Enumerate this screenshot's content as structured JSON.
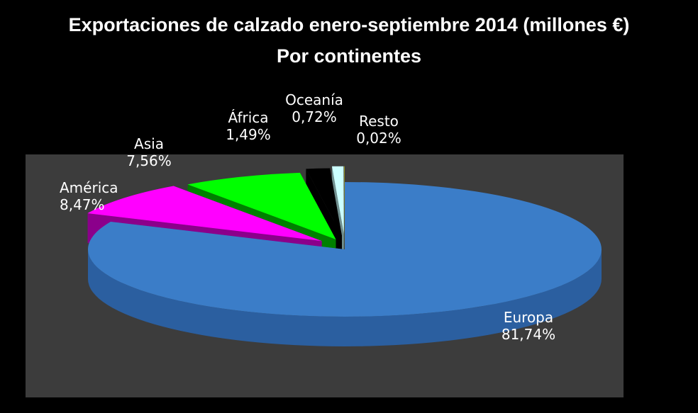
{
  "chart_data": {
    "type": "pie",
    "title": "Exportaciones de calzado enero-septiembre 2014 (millones €)",
    "subtitle": "Por continentes",
    "slices": [
      {
        "label": "Europa",
        "value": 81.74,
        "value_label": "81,74%",
        "color": "#3b7dc8",
        "side_color": "#2b5fa0"
      },
      {
        "label": "América",
        "value": 8.47,
        "value_label": "8,47%",
        "color": "#ff00ff",
        "side_color": "#8b008b"
      },
      {
        "label": "Asia",
        "value": 7.56,
        "value_label": "7,56%",
        "color": "#00ff00",
        "side_color": "#008000"
      },
      {
        "label": "África",
        "value": 1.49,
        "value_label": "1,49%",
        "color": "#000000",
        "side_color": "#000000"
      },
      {
        "label": "Oceanía",
        "value": 0.72,
        "value_label": "0,72%",
        "color": "#ccffff",
        "side_color": "#708f8f"
      },
      {
        "label": "Resto",
        "value": 0.02,
        "value_label": "0,02%",
        "color": "#ffff00",
        "side_color": "#a0a000"
      }
    ],
    "exploded": true,
    "perspective": "3d"
  }
}
